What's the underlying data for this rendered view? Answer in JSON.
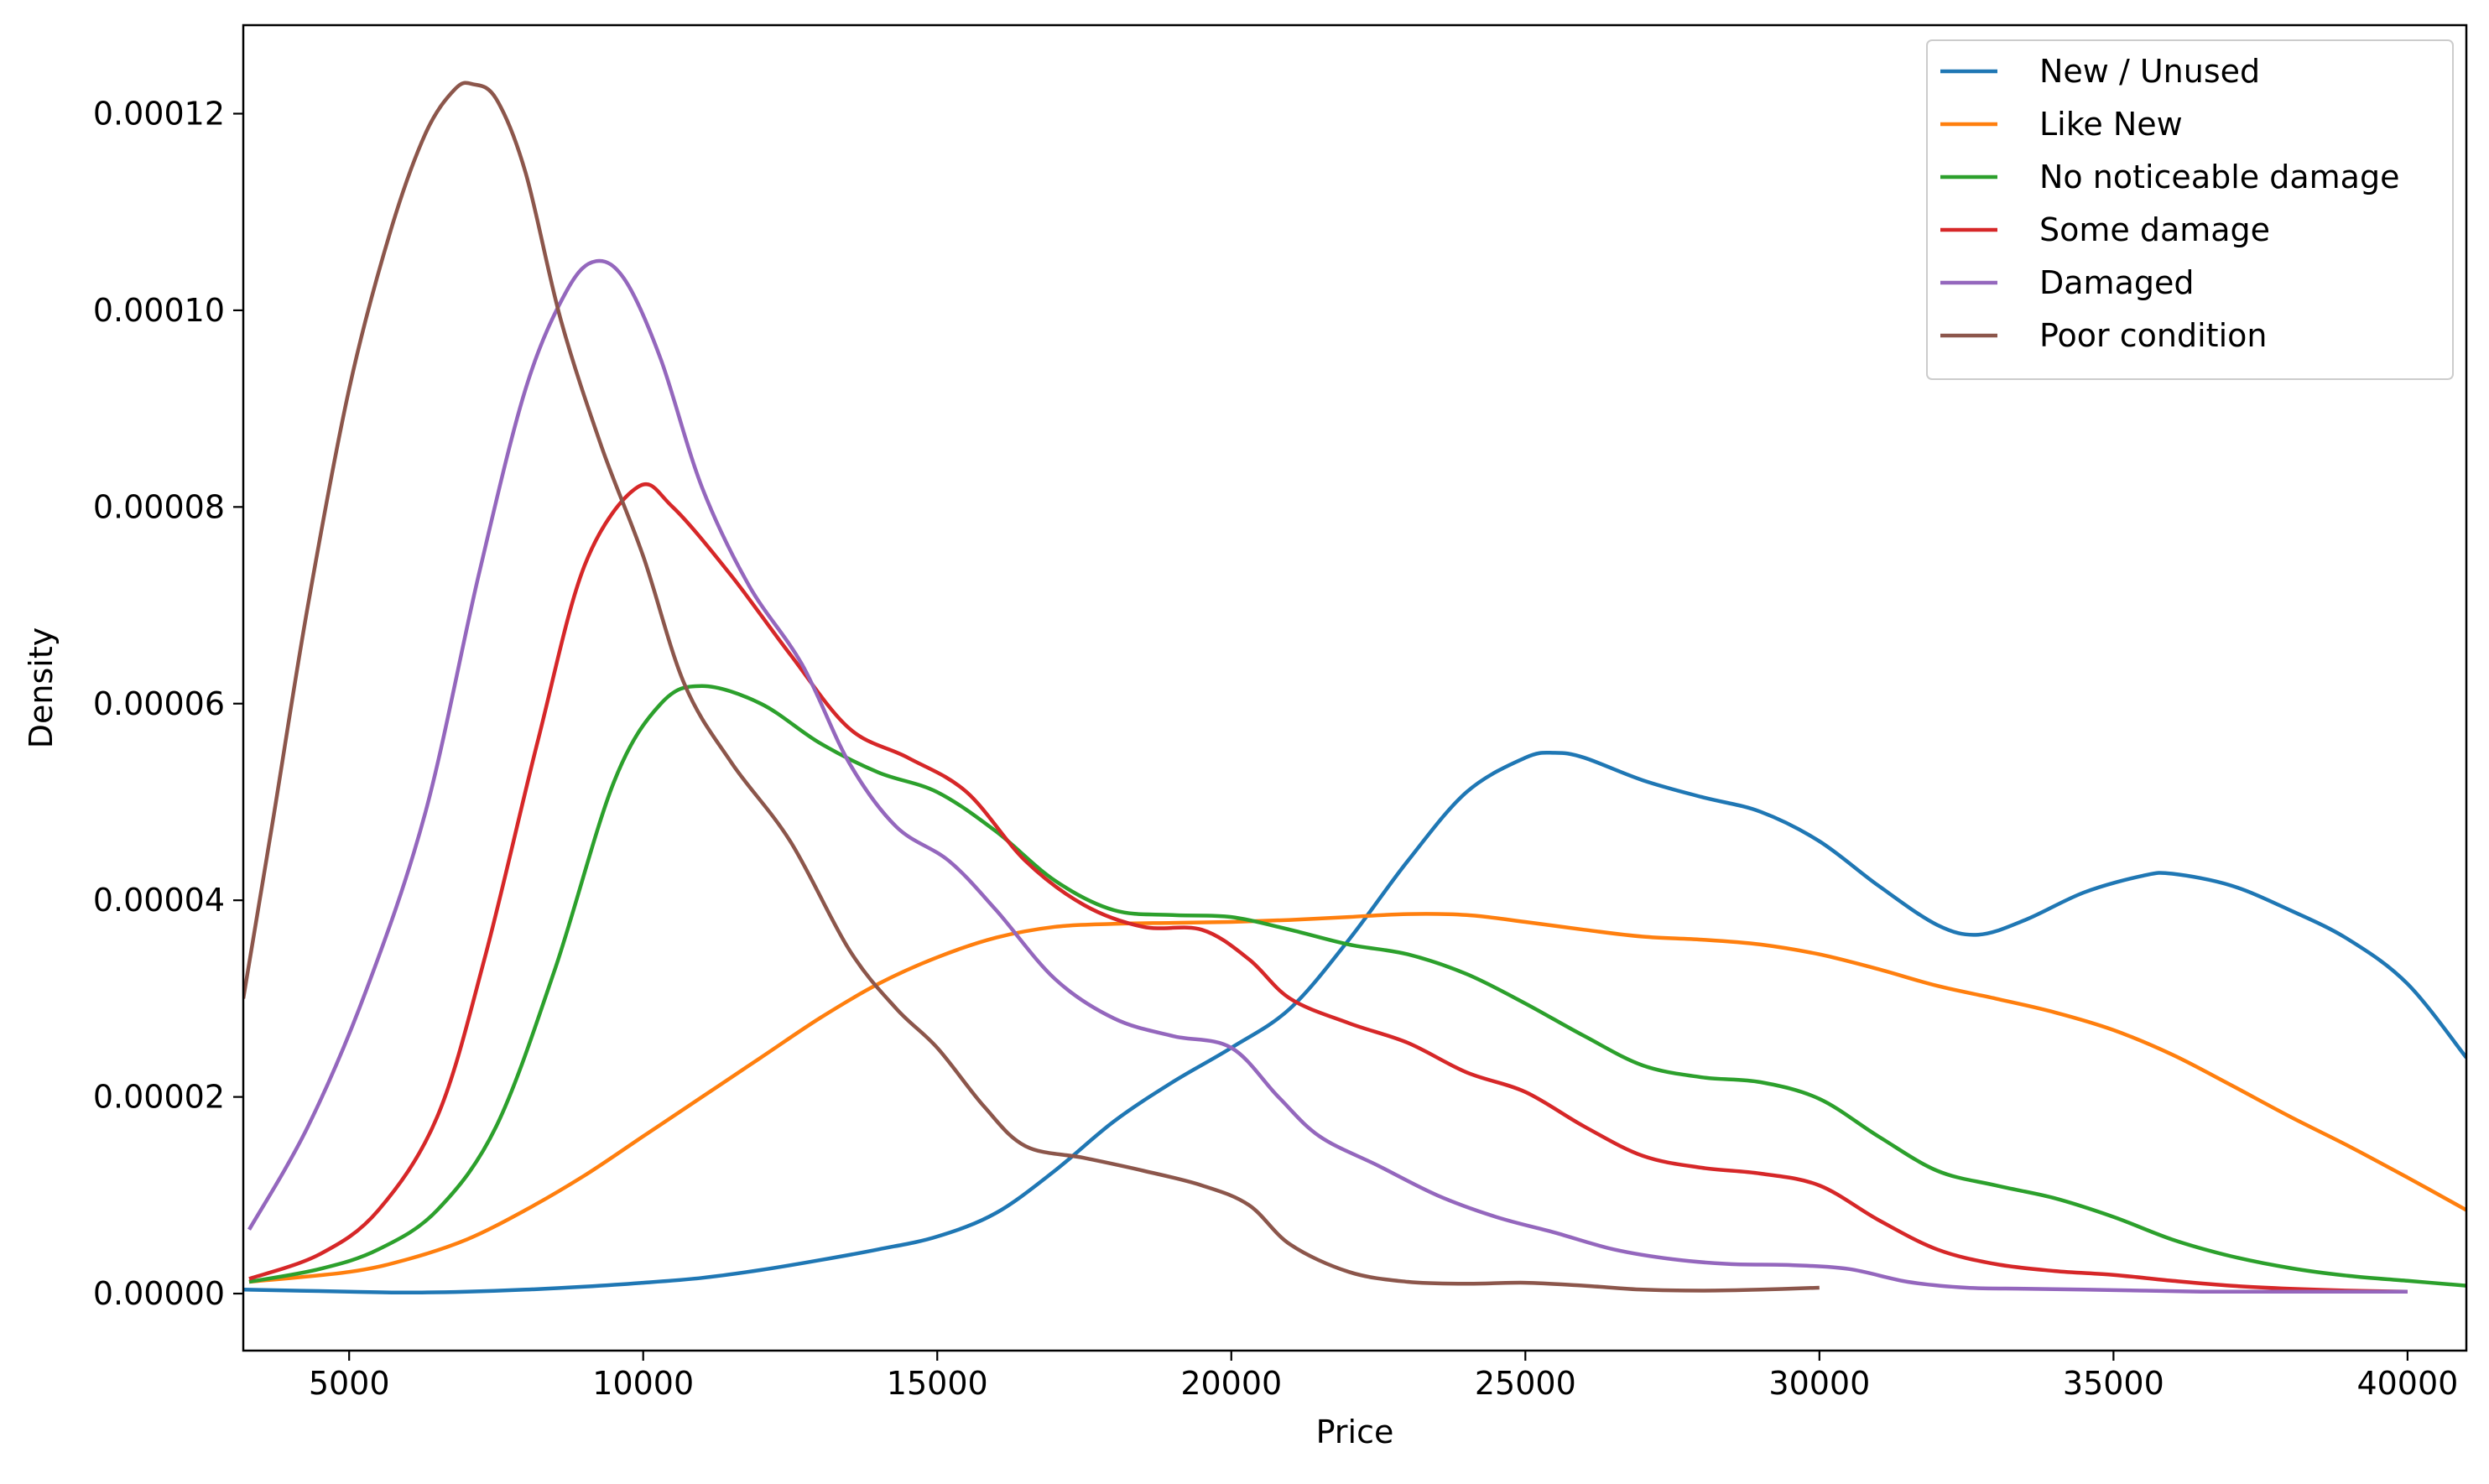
{
  "chart_data": {
    "type": "line",
    "title": "",
    "xlabel": "Price",
    "ylabel": "Density",
    "xlim": [
      3200,
      41000
    ],
    "ylim": [
      -5.8e-06,
      0.000129
    ],
    "xticks": [
      5000,
      10000,
      15000,
      20000,
      25000,
      30000,
      35000,
      40000
    ],
    "xtick_labels": [
      "5000",
      "10000",
      "15000",
      "20000",
      "25000",
      "30000",
      "35000",
      "40000"
    ],
    "yticks": [
      0,
      2e-05,
      4e-05,
      6e-05,
      8e-05,
      0.0001,
      0.00012
    ],
    "ytick_labels": [
      "0.00000",
      "0.00002",
      "0.00004",
      "0.00006",
      "0.00008",
      "0.00010",
      "0.00012"
    ],
    "grid": false,
    "legend_position": "top-right",
    "series": [
      {
        "name": "New / Unused",
        "color": "#1f77b4",
        "x": [
          3200,
          5000,
          6000,
          7000,
          8000,
          9000,
          10000,
          11000,
          12000,
          13000,
          14000,
          15000,
          16000,
          17000,
          18000,
          19000,
          20000,
          21000,
          22000,
          23000,
          24000,
          25000,
          25500,
          26000,
          27000,
          28000,
          29000,
          30000,
          31000,
          32000,
          32700,
          33500,
          34500,
          35500,
          36000,
          37000,
          38000,
          39000,
          40000,
          41000
        ],
        "y": [
          4e-07,
          2e-07,
          1e-07,
          2e-07,
          4e-07,
          7e-07,
          1.1e-06,
          1.6e-06,
          2.4e-06,
          3.4e-06,
          4.5e-06,
          5.8e-06,
          8.2e-06,
          1.25e-05,
          1.75e-05,
          2.15e-05,
          2.5e-05,
          2.9e-05,
          3.6e-05,
          4.4e-05,
          5.1e-05,
          5.45e-05,
          5.5e-05,
          5.45e-05,
          5.22e-05,
          5.05e-05,
          4.9e-05,
          4.6e-05,
          4.15e-05,
          3.75e-05,
          3.65e-05,
          3.8e-05,
          4.08e-05,
          4.25e-05,
          4.27e-05,
          4.15e-05,
          3.9e-05,
          3.6e-05,
          3.15e-05,
          2.4e-05
        ]
      },
      {
        "name": "Like New",
        "color": "#ff7f0e",
        "x": [
          3300,
          5000,
          6000,
          7000,
          8000,
          9000,
          10000,
          11000,
          12000,
          13000,
          14000,
          15000,
          16000,
          17000,
          18000,
          19000,
          20000,
          21000,
          22000,
          23000,
          24000,
          25000,
          26000,
          27000,
          28000,
          29000,
          30000,
          31000,
          32000,
          33000,
          34000,
          35000,
          36000,
          37000,
          38000,
          39000,
          40000,
          41000
        ],
        "y": [
          1.2e-06,
          2.2e-06,
          3.5e-06,
          5.5e-06,
          8.5e-06,
          1.2e-05,
          1.6e-05,
          2e-05,
          2.4e-05,
          2.8e-05,
          3.15e-05,
          3.42e-05,
          3.62e-05,
          3.73e-05,
          3.76e-05,
          3.77e-05,
          3.78e-05,
          3.8e-05,
          3.83e-05,
          3.86e-05,
          3.85e-05,
          3.78e-05,
          3.7e-05,
          3.63e-05,
          3.6e-05,
          3.55e-05,
          3.45e-05,
          3.3e-05,
          3.13e-05,
          3e-05,
          2.86e-05,
          2.68e-05,
          2.43e-05,
          2.12e-05,
          1.8e-05,
          1.5e-05,
          1.18e-05,
          8.5e-06
        ]
      },
      {
        "name": "No noticeable damage",
        "color": "#2ca02c",
        "x": [
          3300,
          4500,
          5500,
          6500,
          7500,
          8500,
          9500,
          10300,
          11000,
          12000,
          13000,
          14000,
          15000,
          16000,
          17000,
          18000,
          19000,
          20000,
          21000,
          22000,
          23000,
          24000,
          25000,
          26000,
          27000,
          28000,
          29000,
          30000,
          31000,
          32000,
          33000,
          34000,
          35000,
          36000,
          37000,
          38000,
          39000,
          40000,
          41000
        ],
        "y": [
          1.2e-06,
          2.5e-06,
          4.5e-06,
          8.5e-06,
          1.7e-05,
          3.3e-05,
          5.2e-05,
          6e-05,
          6.18e-05,
          6e-05,
          5.6e-05,
          5.3e-05,
          5.1e-05,
          4.7e-05,
          4.2e-05,
          3.9e-05,
          3.85e-05,
          3.83e-05,
          3.7e-05,
          3.55e-05,
          3.45e-05,
          3.25e-05,
          2.95e-05,
          2.62e-05,
          2.32e-05,
          2.2e-05,
          2.15e-05,
          1.98e-05,
          1.6e-05,
          1.25e-05,
          1.1e-05,
          9.7e-06,
          7.8e-06,
          5.5e-06,
          3.8e-06,
          2.6e-06,
          1.8e-06,
          1.3e-06,
          8e-07
        ]
      },
      {
        "name": "Some damage",
        "color": "#d62728",
        "x": [
          3300,
          4500,
          5500,
          6500,
          7300,
          8200,
          9000,
          9900,
          10500,
          11500,
          12500,
          13500,
          14500,
          15500,
          16500,
          17500,
          18500,
          19500,
          20300,
          21000,
          22000,
          23000,
          24000,
          25000,
          26000,
          27000,
          28000,
          29000,
          30000,
          31000,
          32000,
          33000,
          34000,
          35000,
          36000,
          37000,
          38000,
          39000,
          40000
        ],
        "y": [
          1.5e-06,
          4e-06,
          8.5e-06,
          1.8e-05,
          3.4e-05,
          5.6e-05,
          7.4e-05,
          8.2e-05,
          8e-05,
          7.3e-05,
          6.5e-05,
          5.75e-05,
          5.45e-05,
          5.1e-05,
          4.4e-05,
          3.95e-05,
          3.73e-05,
          3.7e-05,
          3.4e-05,
          3e-05,
          2.75e-05,
          2.55e-05,
          2.25e-05,
          2.05e-05,
          1.7e-05,
          1.4e-05,
          1.28e-05,
          1.22e-05,
          1.1e-05,
          7.5e-06,
          4.5e-06,
          3e-06,
          2.3e-06,
          1.9e-06,
          1.3e-06,
          8e-07,
          5e-07,
          3e-07,
          2e-07
        ]
      },
      {
        "name": "Damaged",
        "color": "#9467bd",
        "x": [
          3300,
          4300,
          5300,
          6300,
          7200,
          8000,
          8700,
          9200,
          9700,
          10300,
          11000,
          11800,
          12700,
          13500,
          14300,
          15200,
          16000,
          17000,
          18000,
          19000,
          20000,
          20800,
          21500,
          22500,
          23500,
          24500,
          25500,
          26500,
          27500,
          28500,
          29500,
          30500,
          31500,
          32500,
          33500,
          34500,
          35500,
          36500,
          37500,
          38500,
          40000
        ],
        "y": [
          6.5e-06,
          1.7e-05,
          3.1e-05,
          4.9e-05,
          7.3e-05,
          9.2e-05,
          0.000102,
          0.000105,
          0.000103,
          9.5e-05,
          8.2e-05,
          7.2e-05,
          6.4e-05,
          5.4e-05,
          4.75e-05,
          4.4e-05,
          3.9e-05,
          3.2e-05,
          2.8e-05,
          2.62e-05,
          2.5e-05,
          2e-05,
          1.6e-05,
          1.3e-05,
          1e-05,
          7.8e-06,
          6.2e-06,
          4.5e-06,
          3.5e-06,
          3e-06,
          2.9e-06,
          2.5e-06,
          1.2e-06,
          6e-07,
          5e-07,
          4e-07,
          3e-07,
          2e-07,
          2e-07,
          2e-07,
          2e-07
        ]
      },
      {
        "name": "Poor condition",
        "color": "#8c564b",
        "x": [
          3200,
          3700,
          4300,
          5000,
          5700,
          6300,
          6800,
          7100,
          7500,
          8000,
          8600,
          9300,
          10000,
          10700,
          11500,
          12500,
          13500,
          14300,
          15000,
          15800,
          16500,
          17500,
          18500,
          19500,
          20300,
          21000,
          22000,
          23000,
          24000,
          25000,
          26000,
          27000,
          28000,
          29000,
          30000
        ],
        "y": [
          3e-05,
          4.8e-05,
          7e-05,
          9.2e-05,
          0.000108,
          0.000118,
          0.0001225,
          0.000123,
          0.0001215,
          0.000114,
          9.9e-05,
          8.6e-05,
          7.5e-05,
          6.2e-05,
          5.4e-05,
          4.6e-05,
          3.5e-05,
          2.9e-05,
          2.5e-05,
          1.9e-05,
          1.5e-05,
          1.38e-05,
          1.25e-05,
          1.1e-05,
          9e-06,
          5e-06,
          2.2e-06,
          1.2e-06,
          1e-06,
          1.1e-06,
          8e-07,
          4e-07,
          3e-07,
          4e-07,
          6e-07
        ]
      }
    ]
  }
}
